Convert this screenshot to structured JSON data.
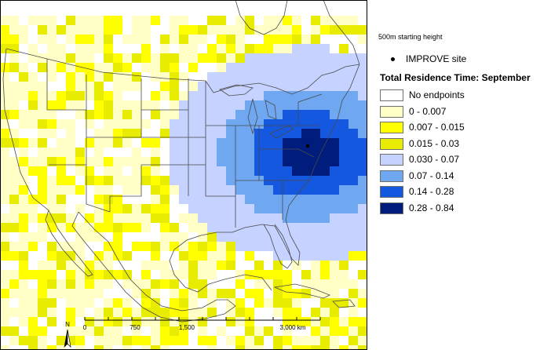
{
  "legend": {
    "starting_height": "500m starting height",
    "site_label": "IMPROVE site",
    "title": "Total Residence Time: September",
    "classes": [
      {
        "label": "No endpoints",
        "color": "#ffffff"
      },
      {
        "label": "0 - 0.007",
        "color": "#ffffc6"
      },
      {
        "label": "0.007 - 0.015",
        "color": "#ffff00"
      },
      {
        "label": "0.015 - 0.03",
        "color": "#e7ec00"
      },
      {
        "label": "0.030 - 0.07",
        "color": "#c6d2ff"
      },
      {
        "label": "0.07 - 0.14",
        "color": "#6fa8f0"
      },
      {
        "label": "0.14 - 0.28",
        "color": "#1458e0"
      },
      {
        "label": "0.28 - 0.84",
        "color": "#001c7c"
      }
    ]
  },
  "map": {
    "north_label": "N",
    "scale_ticks": [
      "0",
      "750",
      "1,500",
      "3,000 km"
    ]
  }
}
